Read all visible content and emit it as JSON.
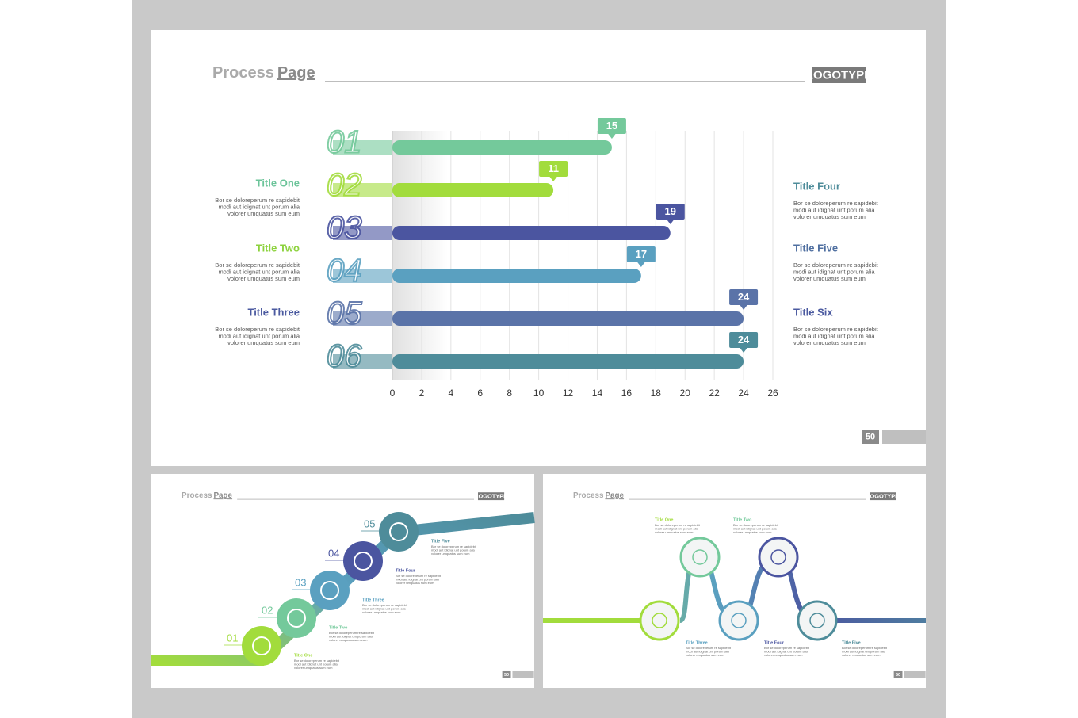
{
  "slides": [
    {
      "heading": [
        "Process",
        "Page"
      ],
      "logotype": "LOGOTYPE",
      "page_number": "50",
      "titles": [
        {
          "title": "Title One",
          "text": [
            "Bor se doloreperum re sapidebit",
            "modi aut idignat unt porum alia",
            "volorer umquatus sum eum"
          ]
        },
        {
          "title": "Title Two",
          "text": [
            "Bor se doloreperum re sapidebit",
            "modi aut idignat unt porum alia",
            "volorer umquatus sum eum"
          ]
        },
        {
          "title": "Title Three",
          "text": [
            "Bor se doloreperum re sapidebit",
            "modi aut idignat unt porum alia",
            "volorer umquatus sum eum"
          ]
        },
        {
          "title": "Title Four",
          "text": [
            "Bor se doloreperum re sapidebit",
            "modi aut idignat unt porum alia",
            "volorer umquatus sum eum"
          ]
        },
        {
          "title": "Title Five",
          "text": [
            "Bor se doloreperum re sapidebit",
            "modi aut idignat unt porum alia",
            "volorer umquatus sum eum"
          ]
        },
        {
          "title": "Title Six",
          "text": [
            "Bor se doloreperum re sapidebit",
            "modi aut idignat unt porum alia",
            "volorer umquatus sum eum"
          ]
        }
      ]
    },
    {
      "heading": [
        "Process",
        "Page"
      ],
      "logotype": "LOGOTYPE",
      "page_number": "50",
      "steps": [
        {
          "number": "01",
          "title": "Title One",
          "text": [
            "Bor se doloreperum re sapidebit",
            "modi aut idignat unt porum alia",
            "volorer umquatus sum eum"
          ]
        },
        {
          "number": "02",
          "title": "Title Two",
          "text": [
            "Bor se doloreperum re sapidebit",
            "modi aut idignat unt porum alia",
            "volorer umquatus sum eum"
          ]
        },
        {
          "number": "03",
          "title": "Title Three",
          "text": [
            "Bor se doloreperum re sapidebit",
            "modi aut idignat unt porum alia",
            "volorer umquatus sum eum"
          ]
        },
        {
          "number": "04",
          "title": "Title Four",
          "text": [
            "Bor se doloreperum re sapidebit",
            "modi aut idignat unt porum alia",
            "volorer umquatus sum eum"
          ]
        },
        {
          "number": "05",
          "title": "Title Five",
          "text": [
            "Bor se doloreperum re sapidebit",
            "modi aut idignat unt porum alia",
            "volorer umquatus sum eum"
          ]
        }
      ]
    },
    {
      "heading": [
        "Process",
        "Page"
      ],
      "logotype": "LOGOTYPE",
      "page_number": "50",
      "steps": [
        {
          "title": "Title One",
          "text": [
            "Bor se doloreperum re sapidebit",
            "modi aut idignat unt porum alia",
            "volorer umquatus sum eum"
          ]
        },
        {
          "title": "Title Two",
          "text": [
            "Bor se doloreperum re sapidebit",
            "modi aut idignat unt porum alia",
            "volorer umquatus sum eum"
          ]
        },
        {
          "title": "Title Three",
          "text": [
            "Bor se doloreperum re sapidebit",
            "modi aut idignat unt porum alia",
            "volorer umquatus sum eum"
          ]
        },
        {
          "title": "Title Four",
          "text": [
            "Bor se doloreperum re sapidebit",
            "modi aut idignat unt porum alia",
            "volorer umquatus sum eum"
          ]
        },
        {
          "title": "Title Five",
          "text": [
            "Bor se doloreperum re sapidebit",
            "modi aut idignat unt porum alia",
            "volorer umquatus sum eum"
          ]
        }
      ]
    }
  ],
  "chart_data": {
    "type": "bar",
    "orientation": "horizontal",
    "categories": [
      "01",
      "02",
      "03",
      "04",
      "05",
      "06"
    ],
    "values": [
      15,
      11,
      19,
      17,
      24,
      24
    ],
    "colors": [
      "#74c99b",
      "#a2dc3c",
      "#4b55a0",
      "#5aa0c0",
      "#5a73a8",
      "#4e8c9a"
    ],
    "xlim": [
      0,
      26
    ],
    "xticks": [
      0,
      2,
      4,
      6,
      8,
      10,
      12,
      14,
      16,
      18,
      20,
      22,
      24,
      26
    ],
    "grid": true
  }
}
